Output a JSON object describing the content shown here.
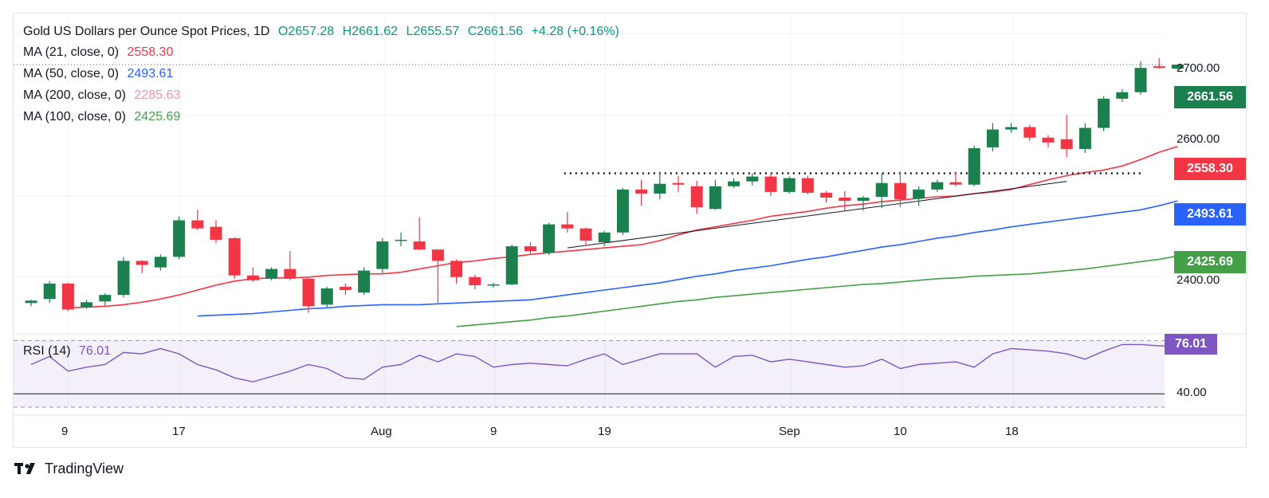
{
  "header": {
    "title": "Gold US Dollars per Ounce Spot Prices, 1D",
    "open": "O2657.28",
    "high": "H2661.62",
    "low": "L2655.57",
    "close": "C2661.56",
    "change": "+4.28 (+0.16%)"
  },
  "moving_averages": [
    {
      "label": "MA (21, close, 0)",
      "value": "2558.30",
      "color": "#f23645"
    },
    {
      "label": "MA (50, close, 0)",
      "value": "2493.61",
      "color": "#2962ff"
    },
    {
      "label": "MA (200, close, 0)",
      "value": "2285.63",
      "color": "#f48fb1"
    },
    {
      "label": "MA (100, close, 0)",
      "value": "2425.69",
      "color": "#43a047"
    }
  ],
  "price_axis": {
    "ticks": [
      "2700.00",
      "2600.00",
      "2400.00"
    ]
  },
  "price_badges": [
    {
      "value": "2661.56",
      "color": "#1b7f4e"
    },
    {
      "value": "2558.30",
      "color": "#f23645"
    },
    {
      "value": "2493.61",
      "color": "#2962ff"
    },
    {
      "value": "2425.69",
      "color": "#43a047"
    }
  ],
  "rsi": {
    "label": "RSI (14)",
    "value": "76.01",
    "axis_label": "40.00",
    "color": "#7e57c2"
  },
  "time_axis": {
    "ticks": [
      "9",
      "17",
      "Aug",
      "9",
      "19",
      "Sep",
      "10",
      "18"
    ]
  },
  "brand": {
    "name": "TradingView"
  },
  "chart_data": {
    "type": "candlestick",
    "title": "Gold US Dollars per Ounce Spot Prices, 1D",
    "ylim": [
      2330,
      2725
    ],
    "up_color": "#1b7f4e",
    "down_color": "#f23645",
    "candles": [
      {
        "o": 2368,
        "h": 2372,
        "l": 2364,
        "c": 2371
      },
      {
        "o": 2373,
        "h": 2395,
        "l": 2368,
        "c": 2392
      },
      {
        "o": 2392,
        "h": 2393,
        "l": 2358,
        "c": 2360
      },
      {
        "o": 2363,
        "h": 2372,
        "l": 2361,
        "c": 2369
      },
      {
        "o": 2370,
        "h": 2380,
        "l": 2365,
        "c": 2378
      },
      {
        "o": 2378,
        "h": 2425,
        "l": 2375,
        "c": 2420
      },
      {
        "o": 2420,
        "h": 2421,
        "l": 2405,
        "c": 2415
      },
      {
        "o": 2412,
        "h": 2428,
        "l": 2408,
        "c": 2425
      },
      {
        "o": 2425,
        "h": 2475,
        "l": 2422,
        "c": 2470
      },
      {
        "o": 2470,
        "h": 2483,
        "l": 2458,
        "c": 2460
      },
      {
        "o": 2462,
        "h": 2470,
        "l": 2442,
        "c": 2446
      },
      {
        "o": 2448,
        "h": 2449,
        "l": 2398,
        "c": 2402
      },
      {
        "o": 2402,
        "h": 2412,
        "l": 2394,
        "c": 2396
      },
      {
        "o": 2398,
        "h": 2412,
        "l": 2396,
        "c": 2410
      },
      {
        "o": 2410,
        "h": 2432,
        "l": 2396,
        "c": 2398
      },
      {
        "o": 2398,
        "h": 2399,
        "l": 2356,
        "c": 2364
      },
      {
        "o": 2366,
        "h": 2388,
        "l": 2362,
        "c": 2386
      },
      {
        "o": 2388,
        "h": 2392,
        "l": 2378,
        "c": 2384
      },
      {
        "o": 2381,
        "h": 2412,
        "l": 2378,
        "c": 2408
      },
      {
        "o": 2410,
        "h": 2448,
        "l": 2405,
        "c": 2444
      },
      {
        "o": 2446,
        "h": 2455,
        "l": 2438,
        "c": 2446
      },
      {
        "o": 2444,
        "h": 2474,
        "l": 2433,
        "c": 2434
      },
      {
        "o": 2434,
        "h": 2434,
        "l": 2368,
        "c": 2420
      },
      {
        "o": 2420,
        "h": 2422,
        "l": 2392,
        "c": 2400
      },
      {
        "o": 2400,
        "h": 2403,
        "l": 2385,
        "c": 2390
      },
      {
        "o": 2390,
        "h": 2393,
        "l": 2387,
        "c": 2391
      },
      {
        "o": 2391,
        "h": 2440,
        "l": 2390,
        "c": 2438
      },
      {
        "o": 2438,
        "h": 2443,
        "l": 2429,
        "c": 2432
      },
      {
        "o": 2430,
        "h": 2467,
        "l": 2427,
        "c": 2465
      },
      {
        "o": 2465,
        "h": 2480,
        "l": 2455,
        "c": 2460
      },
      {
        "o": 2460,
        "h": 2461,
        "l": 2440,
        "c": 2445
      },
      {
        "o": 2443,
        "h": 2457,
        "l": 2438,
        "c": 2455
      },
      {
        "o": 2455,
        "h": 2510,
        "l": 2452,
        "c": 2508
      },
      {
        "o": 2508,
        "h": 2520,
        "l": 2488,
        "c": 2503
      },
      {
        "o": 2503,
        "h": 2530,
        "l": 2496,
        "c": 2515
      },
      {
        "o": 2516,
        "h": 2525,
        "l": 2505,
        "c": 2514
      },
      {
        "o": 2512,
        "h": 2519,
        "l": 2478,
        "c": 2486
      },
      {
        "o": 2484,
        "h": 2520,
        "l": 2483,
        "c": 2512
      },
      {
        "o": 2512,
        "h": 2522,
        "l": 2510,
        "c": 2518
      },
      {
        "o": 2518,
        "h": 2528,
        "l": 2513,
        "c": 2524
      },
      {
        "o": 2524,
        "h": 2528,
        "l": 2500,
        "c": 2505
      },
      {
        "o": 2505,
        "h": 2524,
        "l": 2503,
        "c": 2522
      },
      {
        "o": 2522,
        "h": 2525,
        "l": 2502,
        "c": 2504
      },
      {
        "o": 2504,
        "h": 2506,
        "l": 2492,
        "c": 2498
      },
      {
        "o": 2498,
        "h": 2506,
        "l": 2482,
        "c": 2494
      },
      {
        "o": 2494,
        "h": 2500,
        "l": 2482,
        "c": 2498
      },
      {
        "o": 2499,
        "h": 2528,
        "l": 2485,
        "c": 2516
      },
      {
        "o": 2516,
        "h": 2530,
        "l": 2486,
        "c": 2496
      },
      {
        "o": 2497,
        "h": 2512,
        "l": 2488,
        "c": 2508
      },
      {
        "o": 2508,
        "h": 2520,
        "l": 2505,
        "c": 2517
      },
      {
        "o": 2517,
        "h": 2530,
        "l": 2512,
        "c": 2514
      },
      {
        "o": 2514,
        "h": 2562,
        "l": 2512,
        "c": 2559
      },
      {
        "o": 2560,
        "h": 2590,
        "l": 2555,
        "c": 2582
      },
      {
        "o": 2582,
        "h": 2590,
        "l": 2578,
        "c": 2585
      },
      {
        "o": 2585,
        "h": 2588,
        "l": 2568,
        "c": 2572
      },
      {
        "o": 2572,
        "h": 2575,
        "l": 2560,
        "c": 2566
      },
      {
        "o": 2570,
        "h": 2600,
        "l": 2548,
        "c": 2558
      },
      {
        "o": 2558,
        "h": 2590,
        "l": 2553,
        "c": 2584
      },
      {
        "o": 2584,
        "h": 2623,
        "l": 2580,
        "c": 2620
      },
      {
        "o": 2620,
        "h": 2632,
        "l": 2616,
        "c": 2628
      },
      {
        "o": 2628,
        "h": 2666,
        "l": 2625,
        "c": 2658
      },
      {
        "o": 2660,
        "h": 2670,
        "l": 2657,
        "c": 2658
      },
      {
        "o": 2657,
        "h": 2662,
        "l": 2656,
        "c": 2662
      }
    ],
    "ma21": [
      2362,
      2363,
      2364,
      2366,
      2369,
      2373,
      2378,
      2384,
      2390,
      2395,
      2398,
      2399,
      2399,
      2400,
      2402,
      2403,
      2404,
      2404,
      2406,
      2410,
      2414,
      2418,
      2420,
      2423,
      2425,
      2428,
      2430,
      2432,
      2434,
      2436,
      2438,
      2440,
      2445,
      2452,
      2458,
      2462,
      2466,
      2470,
      2475,
      2478,
      2481,
      2485,
      2488,
      2490,
      2493,
      2495,
      2497,
      2499,
      2500,
      2503,
      2505,
      2508,
      2514,
      2520,
      2525,
      2529,
      2532,
      2537,
      2545,
      2554,
      2561
    ],
    "ma50": [
      2352,
      2353,
      2354,
      2355,
      2357,
      2359,
      2361,
      2362,
      2364,
      2365,
      2366,
      2366,
      2366,
      2367,
      2368,
      2369,
      2370,
      2371,
      2372,
      2375,
      2378,
      2381,
      2384,
      2387,
      2390,
      2393,
      2397,
      2401,
      2404,
      2408,
      2411,
      2414,
      2418,
      2422,
      2425,
      2429,
      2433,
      2437,
      2440,
      2444,
      2448,
      2451,
      2455,
      2458,
      2462,
      2465,
      2468,
      2471,
      2474,
      2477,
      2480,
      2483,
      2488,
      2494
    ],
    "ma100": [
      2339,
      2341,
      2343,
      2345,
      2347,
      2350,
      2352,
      2355,
      2358,
      2361,
      2364,
      2367,
      2370,
      2372,
      2375,
      2377,
      2379,
      2381,
      2383,
      2385,
      2387,
      2389,
      2391,
      2392,
      2394,
      2396,
      2398,
      2399,
      2401,
      2402,
      2403,
      2404,
      2406,
      2408,
      2410,
      2413,
      2416,
      2419,
      2422,
      2426
    ],
    "rsi_series": [
      62,
      68,
      57,
      60,
      62,
      71,
      70,
      74,
      70,
      62,
      58,
      52,
      49,
      53,
      57,
      62,
      59,
      52,
      51,
      60,
      62,
      69,
      64,
      70,
      68,
      60,
      62,
      63,
      62,
      61,
      66,
      70,
      62,
      66,
      70,
      70,
      70,
      60,
      68,
      69,
      64,
      66,
      64,
      62,
      60,
      61,
      66,
      59,
      62,
      63,
      64,
      60,
      70,
      74,
      73,
      72,
      70,
      66,
      72,
      77,
      77,
      76,
      76
    ],
    "resistance_level": 2528,
    "trendline": {
      "from_index": 29,
      "to_index": 56,
      "from_value": 2436,
      "to_value": 2518
    },
    "rsi_ylim": [
      30,
      85
    ],
    "rsi_bands": [
      30,
      40,
      80
    ]
  }
}
